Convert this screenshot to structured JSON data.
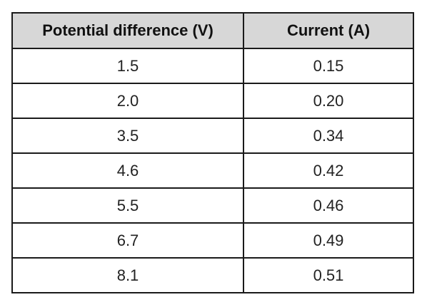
{
  "table": {
    "headers": [
      "Potential difference (V)",
      "Current (A)"
    ],
    "header_bg": "#d7d7d7",
    "rows": [
      [
        "1.5",
        "0.15"
      ],
      [
        "2.0",
        "0.20"
      ],
      [
        "3.5",
        "0.34"
      ],
      [
        "4.6",
        "0.42"
      ],
      [
        "5.5",
        "0.46"
      ],
      [
        "6.7",
        "0.49"
      ],
      [
        "8.1",
        "0.51"
      ]
    ]
  },
  "chart_data": {
    "type": "table",
    "columns": [
      "Potential difference (V)",
      "Current (A)"
    ],
    "rows": [
      [
        1.5,
        0.15
      ],
      [
        2.0,
        0.2
      ],
      [
        3.5,
        0.34
      ],
      [
        4.6,
        0.42
      ],
      [
        5.5,
        0.46
      ],
      [
        6.7,
        0.49
      ],
      [
        8.1,
        0.51
      ]
    ]
  }
}
